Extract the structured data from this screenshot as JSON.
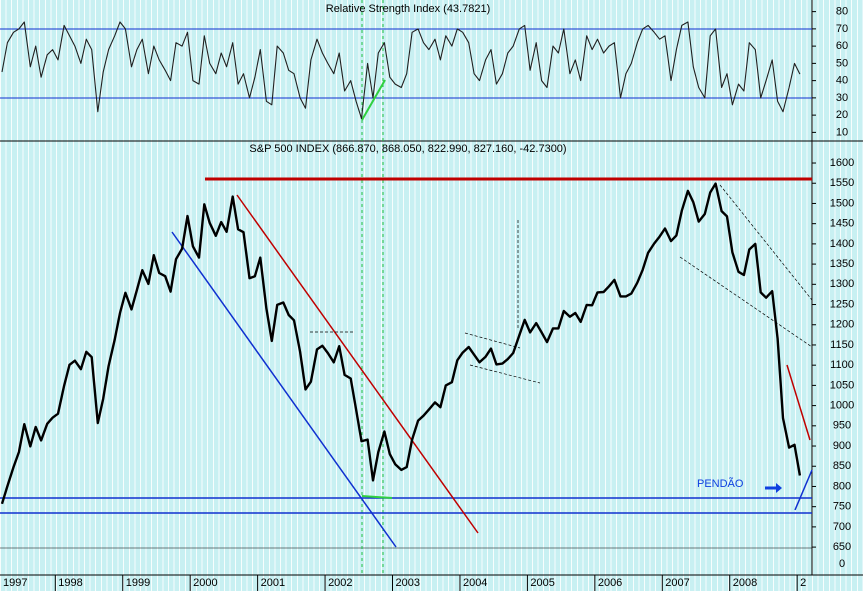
{
  "chart_data": [
    {
      "type": "line",
      "title": "Relative Strength Index (43.7821)",
      "x": [
        1997.21,
        1997.29,
        1997.38,
        1997.46,
        1997.54,
        1997.63,
        1997.71,
        1997.79,
        1997.88,
        1997.96,
        1998.04,
        1998.13,
        1998.21,
        1998.29,
        1998.38,
        1998.46,
        1998.54,
        1998.63,
        1998.71,
        1998.79,
        1998.88,
        1998.96,
        1999.04,
        1999.13,
        1999.21,
        1999.29,
        1999.38,
        1999.46,
        1999.54,
        1999.63,
        1999.71,
        1999.79,
        1999.88,
        1999.96,
        2000.04,
        2000.13,
        2000.21,
        2000.29,
        2000.38,
        2000.46,
        2000.54,
        2000.63,
        2000.71,
        2000.79,
        2000.88,
        2000.96,
        2001.04,
        2001.13,
        2001.21,
        2001.29,
        2001.38,
        2001.46,
        2001.54,
        2001.63,
        2001.71,
        2001.79,
        2001.88,
        2001.96,
        2002.04,
        2002.13,
        2002.21,
        2002.29,
        2002.38,
        2002.46,
        2002.54,
        2002.63,
        2002.71,
        2002.79,
        2002.88,
        2002.96,
        2003.04,
        2003.13,
        2003.21,
        2003.29,
        2003.38,
        2003.46,
        2003.54,
        2003.63,
        2003.71,
        2003.79,
        2003.88,
        2003.96,
        2004.04,
        2004.13,
        2004.21,
        2004.29,
        2004.38,
        2004.46,
        2004.54,
        2004.63,
        2004.71,
        2004.79,
        2004.88,
        2004.96,
        2005.04,
        2005.13,
        2005.21,
        2005.29,
        2005.38,
        2005.46,
        2005.54,
        2005.63,
        2005.71,
        2005.79,
        2005.88,
        2005.96,
        2006.04,
        2006.13,
        2006.21,
        2006.29,
        2006.38,
        2006.46,
        2006.54,
        2006.63,
        2006.71,
        2006.79,
        2006.88,
        2006.96,
        2007.04,
        2007.13,
        2007.21,
        2007.29,
        2007.38,
        2007.46,
        2007.54,
        2007.63,
        2007.71,
        2007.79,
        2007.88,
        2007.96,
        2008.04,
        2008.13,
        2008.21,
        2008.29,
        2008.38,
        2008.46,
        2008.54,
        2008.63,
        2008.71,
        2008.79,
        2008.88,
        2008.96,
        2009.04
      ],
      "series": [
        {
          "name": "RSI",
          "color": "#202020",
          "values": [
            45,
            62,
            68,
            70,
            74,
            48,
            60,
            42,
            55,
            58,
            52,
            72,
            66,
            60,
            50,
            64,
            58,
            22,
            45,
            58,
            66,
            74,
            70,
            48,
            58,
            64,
            44,
            60,
            52,
            46,
            40,
            62,
            60,
            68,
            40,
            38,
            66,
            50,
            44,
            56,
            48,
            62,
            38,
            44,
            30,
            42,
            58,
            28,
            26,
            60,
            56,
            46,
            44,
            30,
            24,
            52,
            64,
            56,
            50,
            44,
            56,
            34,
            40,
            28,
            18,
            50,
            30,
            56,
            62,
            42,
            38,
            36,
            44,
            68,
            70,
            62,
            58,
            64,
            52,
            66,
            60,
            70,
            68,
            62,
            44,
            40,
            52,
            58,
            38,
            44,
            56,
            60,
            70,
            72,
            46,
            62,
            40,
            36,
            60,
            56,
            70,
            44,
            52,
            40,
            66,
            58,
            64,
            56,
            60,
            62,
            30,
            44,
            50,
            62,
            70,
            72,
            68,
            64,
            66,
            40,
            58,
            72,
            74,
            48,
            36,
            30,
            66,
            70,
            36,
            44,
            26,
            38,
            34,
            62,
            58,
            30,
            40,
            52,
            28,
            22,
            36,
            50,
            43.78
          ]
        }
      ],
      "xlim": [
        1997.18,
        2009.22
      ],
      "ylim": [
        5,
        85
      ],
      "yticks": [
        10,
        20,
        30,
        40,
        50,
        60,
        70,
        80
      ]
    },
    {
      "type": "line",
      "title": "S&P 500 INDEX (866.870, 868.050, 822.990, 827.160, -42.7300)",
      "x": [
        1997.21,
        1997.29,
        1997.38,
        1997.46,
        1997.54,
        1997.63,
        1997.71,
        1997.79,
        1997.88,
        1997.96,
        1998.04,
        1998.13,
        1998.21,
        1998.29,
        1998.38,
        1998.46,
        1998.54,
        1998.63,
        1998.71,
        1998.79,
        1998.88,
        1998.96,
        1999.04,
        1999.13,
        1999.21,
        1999.29,
        1999.38,
        1999.46,
        1999.54,
        1999.63,
        1999.71,
        1999.79,
        1999.88,
        1999.96,
        2000.04,
        2000.13,
        2000.21,
        2000.29,
        2000.38,
        2000.46,
        2000.54,
        2000.63,
        2000.71,
        2000.79,
        2000.88,
        2000.96,
        2001.04,
        2001.13,
        2001.21,
        2001.29,
        2001.38,
        2001.46,
        2001.54,
        2001.63,
        2001.71,
        2001.79,
        2001.88,
        2001.96,
        2002.04,
        2002.13,
        2002.21,
        2002.29,
        2002.38,
        2002.46,
        2002.54,
        2002.63,
        2002.71,
        2002.79,
        2002.88,
        2002.96,
        2003.04,
        2003.13,
        2003.21,
        2003.29,
        2003.38,
        2003.46,
        2003.54,
        2003.63,
        2003.71,
        2003.79,
        2003.88,
        2003.96,
        2004.04,
        2004.13,
        2004.21,
        2004.29,
        2004.38,
        2004.46,
        2004.54,
        2004.63,
        2004.71,
        2004.79,
        2004.88,
        2004.96,
        2005.04,
        2005.13,
        2005.21,
        2005.29,
        2005.38,
        2005.46,
        2005.54,
        2005.63,
        2005.71,
        2005.79,
        2005.88,
        2005.96,
        2006.04,
        2006.13,
        2006.21,
        2006.29,
        2006.38,
        2006.46,
        2006.54,
        2006.63,
        2006.71,
        2006.79,
        2006.88,
        2006.96,
        2007.04,
        2007.13,
        2007.21,
        2007.29,
        2007.38,
        2007.46,
        2007.54,
        2007.63,
        2007.71,
        2007.79,
        2007.88,
        2007.96,
        2008.04,
        2008.13,
        2008.21,
        2008.29,
        2008.38,
        2008.46,
        2008.54,
        2008.63,
        2008.71,
        2008.79,
        2008.88,
        2008.96,
        2009.04
      ],
      "series": [
        {
          "name": "S&P 500 INDEX",
          "color": "#000000",
          "values": [
            757,
            801,
            848,
            885,
            954,
            899,
            947,
            914,
            955,
            970,
            980,
            1049,
            1101,
            1111,
            1090,
            1133,
            1120,
            957,
            1017,
            1098,
            1163,
            1229,
            1279,
            1238,
            1286,
            1335,
            1301,
            1372,
            1328,
            1320,
            1282,
            1362,
            1388,
            1469,
            1394,
            1366,
            1498,
            1452,
            1420,
            1454,
            1430,
            1517,
            1436,
            1429,
            1315,
            1320,
            1366,
            1240,
            1160,
            1249,
            1255,
            1224,
            1211,
            1133,
            1040,
            1059,
            1139,
            1148,
            1130,
            1107,
            1147,
            1076,
            1067,
            990,
            912,
            916,
            815,
            885,
            936,
            880,
            855,
            841,
            848,
            916,
            963,
            975,
            990,
            1008,
            996,
            1050,
            1058,
            1112,
            1131,
            1145,
            1126,
            1107,
            1121,
            1141,
            1102,
            1104,
            1115,
            1130,
            1174,
            1212,
            1181,
            1204,
            1181,
            1157,
            1191,
            1191,
            1234,
            1220,
            1229,
            1207,
            1249,
            1248,
            1280,
            1281,
            1295,
            1311,
            1270,
            1270,
            1277,
            1304,
            1336,
            1378,
            1401,
            1418,
            1438,
            1407,
            1421,
            1482,
            1531,
            1503,
            1455,
            1474,
            1527,
            1549,
            1481,
            1468,
            1379,
            1331,
            1323,
            1386,
            1400,
            1280,
            1267,
            1283,
            1166,
            969,
            896,
            903,
            827
          ]
        }
      ],
      "xlim": [
        1997.18,
        2009.22
      ],
      "ylim": [
        581,
        1652
      ],
      "yticks": [
        650,
        700,
        750,
        800,
        850,
        900,
        950,
        1000,
        1050,
        1100,
        1150,
        1200,
        1250,
        1300,
        1350,
        1400,
        1450,
        1500,
        1550,
        1600
      ],
      "xticks": [
        1997,
        1998,
        1999,
        2000,
        2001,
        2002,
        2003,
        2004,
        2005,
        2006,
        2007,
        2008,
        {
          "value": 2009,
          "label": "2"
        }
      ],
      "annotations": [
        "PENDÃO"
      ],
      "axis_break_label": "0"
    }
  ]
}
